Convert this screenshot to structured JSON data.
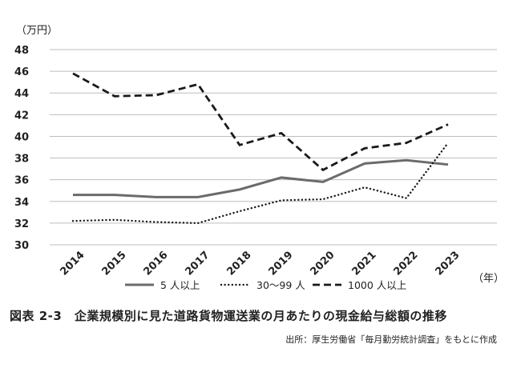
{
  "chart_data": {
    "type": "line",
    "unit_label": "（万円）",
    "x_unit_label": "（年）",
    "x": [
      "2014",
      "2015",
      "2016",
      "2017",
      "2018",
      "2019",
      "2020",
      "2021",
      "2022",
      "2023"
    ],
    "ylim": [
      30,
      48
    ],
    "yticks": [
      30,
      32,
      34,
      36,
      38,
      40,
      42,
      44,
      46,
      48
    ],
    "grid": true,
    "legend_position": "bottom",
    "series": [
      {
        "name": "5 人以上",
        "style": "solid",
        "color": "#6b6b6b",
        "values": [
          34.6,
          34.6,
          34.4,
          34.4,
          35.1,
          36.2,
          35.8,
          37.5,
          37.8,
          37.4
        ]
      },
      {
        "name": "30～99 人",
        "style": "dotted",
        "color": "#1a1a1a",
        "values": [
          32.2,
          32.3,
          32.1,
          32.0,
          33.1,
          34.1,
          34.2,
          35.3,
          34.3,
          39.4
        ]
      },
      {
        "name": "1000 人以上",
        "style": "dashed",
        "color": "#1a1a1a",
        "values": [
          45.8,
          43.7,
          43.8,
          44.8,
          39.2,
          40.3,
          36.9,
          38.9,
          39.4,
          41.1
        ]
      }
    ]
  },
  "caption": "図表 2-3　企業規模別に見た道路貨物運送業の月あたりの現金給与総額の推移",
  "source": "出所：厚生労働省「毎月勤労統計調査」をもとに作成"
}
